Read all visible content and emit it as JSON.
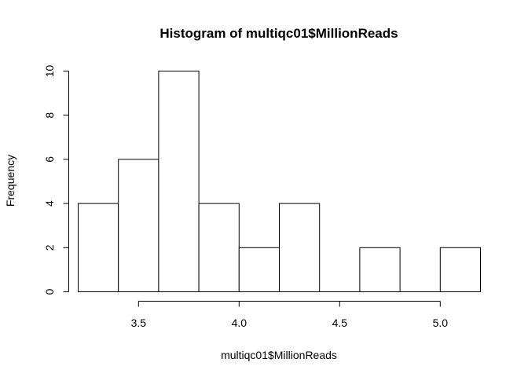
{
  "chart_data": {
    "type": "bar",
    "title": "Histogram of multiqc01$MillionReads",
    "xlabel": "multiqc01$MillionReads",
    "ylabel": "Frequency",
    "bins": [
      {
        "start": 3.2,
        "end": 3.4,
        "count": 4
      },
      {
        "start": 3.4,
        "end": 3.6,
        "count": 6
      },
      {
        "start": 3.6,
        "end": 3.8,
        "count": 10
      },
      {
        "start": 3.8,
        "end": 4.0,
        "count": 4
      },
      {
        "start": 4.0,
        "end": 4.2,
        "count": 2
      },
      {
        "start": 4.2,
        "end": 4.4,
        "count": 4
      },
      {
        "start": 4.4,
        "end": 4.6,
        "count": 0
      },
      {
        "start": 4.6,
        "end": 4.8,
        "count": 2
      },
      {
        "start": 4.8,
        "end": 5.0,
        "count": 0
      },
      {
        "start": 5.0,
        "end": 5.2,
        "count": 2
      }
    ],
    "x_ticks": [
      3.5,
      4.0,
      4.5,
      5.0
    ],
    "x_tick_labels": [
      "3.5",
      "4.0",
      "4.5",
      "5.0"
    ],
    "y_ticks": [
      0,
      2,
      4,
      6,
      8,
      10
    ],
    "y_tick_labels": [
      "0",
      "2",
      "4",
      "6",
      "8",
      "10"
    ],
    "xlim": [
      3.2,
      5.2
    ],
    "ylim": [
      0,
      10
    ],
    "grid": false,
    "legend": "none"
  }
}
